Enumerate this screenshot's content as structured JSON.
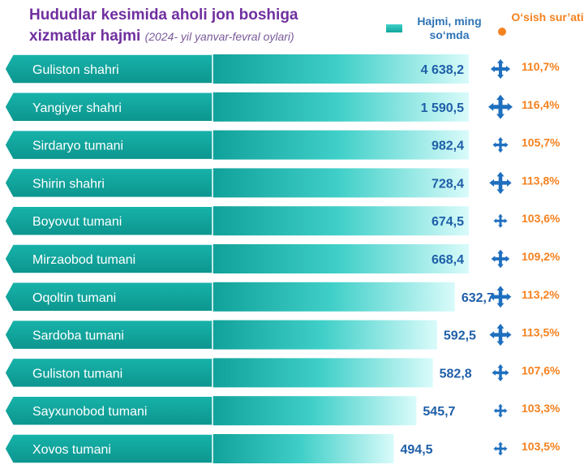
{
  "header": {
    "title_line1": "Hududlar kesimida aholi jon boshiga",
    "title_line2": "xizmatlar hajmi",
    "subtitle": "(2024- yil yanvar-fevral oylari)"
  },
  "legend": {
    "volume": "Hajmi, ming so‘mda",
    "growth": "O‘sish sur’ati"
  },
  "colors": {
    "bar_dark": "#0e9f98",
    "bar_light": "#d9fbfa",
    "tag": "#12a59c",
    "value_text": "#1f5fa8",
    "growth_text": "#f58220",
    "icon": "#1f6fbf"
  },
  "chart_data": {
    "type": "bar",
    "orientation": "horizontal",
    "categories": [
      "Guliston shahri",
      "Yangiyer shahri",
      "Sirdaryo tumani",
      "Shirin shahri",
      "Boyovut tumani",
      "Mirzaobod tumani",
      "Oqoltin tumani",
      "Sardoba tumani",
      "Guliston tumani",
      "Sayxunobod tumani",
      "Xovos tumani"
    ],
    "series": [
      {
        "name": "Hajmi, ming so‘mda",
        "values": [
          4638.2,
          1590.5,
          982.4,
          728.4,
          674.5,
          668.4,
          632.7,
          592.5,
          582.8,
          545.7,
          494.5
        ],
        "labels": [
          "4 638,2",
          "1 590,5",
          "982,4",
          "728,4",
          "674,5",
          "668,4",
          "632,7",
          "592,5",
          "582,8",
          "545,7",
          "494,5"
        ]
      },
      {
        "name": "O‘sish sur’ati",
        "values": [
          110.7,
          116.4,
          105.7,
          113.8,
          103.6,
          109.2,
          113.2,
          113.5,
          107.6,
          103.3,
          103.5
        ],
        "labels": [
          "110,7%",
          "116,4%",
          "105,7%",
          "113,8%",
          "103,6%",
          "109,2%",
          "113,2%",
          "113,5%",
          "107,6%",
          "103,3%",
          "103,5%"
        ]
      }
    ],
    "axis_scale": "broken (first bar truncated)"
  }
}
